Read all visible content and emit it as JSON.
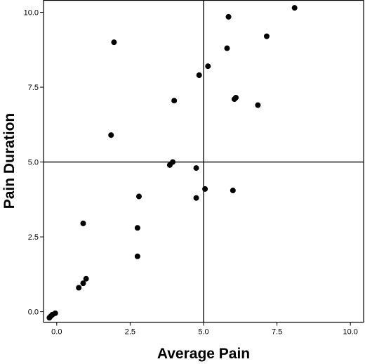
{
  "chart_data": {
    "type": "scatter",
    "title": "",
    "xlabel": "Average Pain",
    "ylabel": "Pain Duration",
    "xlim": [
      -0.45,
      10.45
    ],
    "ylim": [
      -0.35,
      10.4
    ],
    "xticks": [
      0.0,
      2.5,
      5.0,
      7.5,
      10.0
    ],
    "xtick_labels": [
      "0.0",
      "2.5",
      "5.0",
      "7.5",
      "10.0"
    ],
    "yticks": [
      0.0,
      2.5,
      5.0,
      7.5,
      10.0
    ],
    "ytick_labels": [
      "0.0",
      "2.5",
      "5.0",
      "7.5",
      "10.0"
    ],
    "reference_lines": {
      "x": 5.0,
      "y": 5.0
    },
    "grid": false,
    "marker_color": "#000000",
    "series": [
      {
        "points": [
          {
            "x": 8.1,
            "y": 10.15
          },
          {
            "x": 5.85,
            "y": 9.85
          },
          {
            "x": 7.15,
            "y": 9.2
          },
          {
            "x": 1.95,
            "y": 9.0
          },
          {
            "x": 5.8,
            "y": 8.8
          },
          {
            "x": 5.15,
            "y": 8.2
          },
          {
            "x": 4.85,
            "y": 7.9
          },
          {
            "x": 6.05,
            "y": 7.1
          },
          {
            "x": 6.1,
            "y": 7.15
          },
          {
            "x": 4.0,
            "y": 7.05
          },
          {
            "x": 6.85,
            "y": 6.9
          },
          {
            "x": 1.85,
            "y": 5.9
          },
          {
            "x": 3.85,
            "y": 4.9
          },
          {
            "x": 3.95,
            "y": 5.0
          },
          {
            "x": 4.75,
            "y": 4.8
          },
          {
            "x": 5.05,
            "y": 4.1
          },
          {
            "x": 6.0,
            "y": 4.05
          },
          {
            "x": 2.8,
            "y": 3.85
          },
          {
            "x": 4.75,
            "y": 3.8
          },
          {
            "x": 0.9,
            "y": 2.95
          },
          {
            "x": 2.75,
            "y": 2.8
          },
          {
            "x": 2.75,
            "y": 1.85
          },
          {
            "x": 1.0,
            "y": 1.1
          },
          {
            "x": 0.9,
            "y": 0.95
          },
          {
            "x": 0.75,
            "y": 0.8
          },
          {
            "x": -0.05,
            "y": -0.05
          },
          {
            "x": -0.15,
            "y": -0.1
          },
          {
            "x": -0.2,
            "y": -0.15
          },
          {
            "x": -0.25,
            "y": -0.2
          }
        ]
      }
    ]
  }
}
